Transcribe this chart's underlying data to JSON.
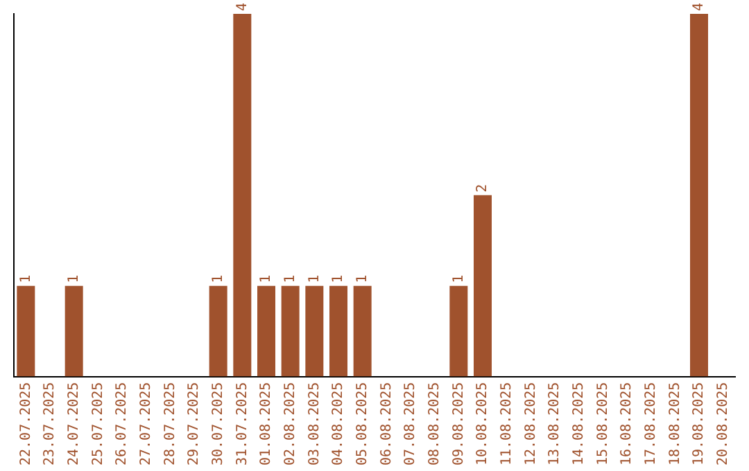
{
  "chart_data": {
    "type": "bar",
    "categories": [
      "22.07.2025",
      "23.07.2025",
      "24.07.2025",
      "25.07.2025",
      "26.07.2025",
      "27.07.2025",
      "28.07.2025",
      "29.07.2025",
      "30.07.2025",
      "31.07.2025",
      "01.08.2025",
      "02.08.2025",
      "03.08.2025",
      "04.08.2025",
      "05.08.2025",
      "06.08.2025",
      "07.08.2025",
      "08.08.2025",
      "09.08.2025",
      "10.08.2025",
      "11.08.2025",
      "12.08.2025",
      "13.08.2025",
      "14.08.2025",
      "15.08.2025",
      "16.08.2025",
      "17.08.2025",
      "18.08.2025",
      "19.08.2025",
      "20.08.2025"
    ],
    "values": [
      1,
      0,
      1,
      0,
      0,
      0,
      0,
      0,
      1,
      4,
      1,
      1,
      1,
      1,
      1,
      0,
      0,
      0,
      1,
      2,
      0,
      0,
      0,
      0,
      0,
      0,
      0,
      0,
      4,
      0
    ],
    "value_labels": [
      "1",
      null,
      "1",
      null,
      null,
      null,
      null,
      null,
      "1",
      "4",
      "1",
      "1",
      "1",
      "1",
      "1",
      null,
      null,
      null,
      "1",
      "2",
      null,
      null,
      null,
      null,
      null,
      null,
      null,
      null,
      "4",
      null
    ],
    "color": "#a0522d",
    "ylim": [
      0,
      4
    ],
    "tick_labels": "x",
    "grid": false,
    "legend": false
  }
}
